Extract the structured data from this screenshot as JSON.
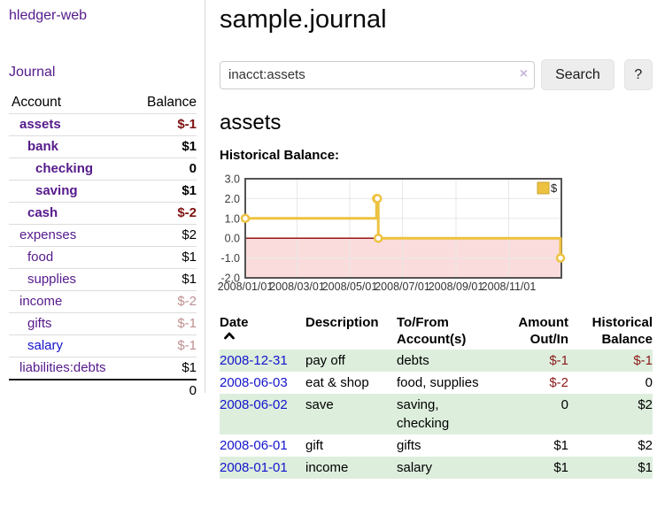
{
  "colors": {
    "link_purple": "#551a8b",
    "link_blue": "#1414cc",
    "negative_strong": "#7f1111",
    "negative_muted": "#bf8f8f",
    "register_negative": "#8b1a1a",
    "row_green": "#ddeedd",
    "chart_gold": "#edc240"
  },
  "sidebar": {
    "app_title": "hledger-web",
    "nav_journal": "Journal",
    "accounts": {
      "header_account": "Account",
      "header_balance": "Balance",
      "rows": [
        {
          "name": "assets",
          "depth": 1,
          "bold": true,
          "balance": "$-1",
          "balance_color": "neg-strong",
          "link_color": "purple"
        },
        {
          "name": "bank",
          "depth": 2,
          "bold": true,
          "balance": "$1",
          "balance_color": "normal",
          "link_color": "purple"
        },
        {
          "name": "checking",
          "depth": 3,
          "bold": true,
          "balance": "0",
          "balance_color": "normal",
          "link_color": "purple"
        },
        {
          "name": "saving",
          "depth": 3,
          "bold": true,
          "balance": "$1",
          "balance_color": "normal",
          "link_color": "purple"
        },
        {
          "name": "cash",
          "depth": 2,
          "bold": true,
          "balance": "$-2",
          "balance_color": "neg-strong",
          "link_color": "purple"
        },
        {
          "name": "expenses",
          "depth": 1,
          "bold": false,
          "balance": "$2",
          "balance_color": "normal",
          "link_color": "purple"
        },
        {
          "name": "food",
          "depth": 2,
          "bold": false,
          "balance": "$1",
          "balance_color": "normal",
          "link_color": "purple"
        },
        {
          "name": "supplies",
          "depth": 2,
          "bold": false,
          "balance": "$1",
          "balance_color": "normal",
          "link_color": "purple"
        },
        {
          "name": "income",
          "depth": 1,
          "bold": false,
          "balance": "$-2",
          "balance_color": "neg-muted",
          "link_color": "purple"
        },
        {
          "name": "gifts",
          "depth": 2,
          "bold": false,
          "balance": "$-1",
          "balance_color": "neg-muted",
          "link_color": "purple"
        },
        {
          "name": "salary",
          "depth": 2,
          "bold": false,
          "balance": "$-1",
          "balance_color": "neg-muted",
          "link_color": "blue"
        },
        {
          "name": "liabilities:debts",
          "depth": 1,
          "bold": false,
          "balance": "$1",
          "balance_color": "normal",
          "link_color": "purple"
        }
      ],
      "total": "0"
    }
  },
  "header": {
    "title": "sample.journal"
  },
  "search": {
    "query": "inacct:assets",
    "clear_icon": "×",
    "search_button": "Search",
    "help_button": "?"
  },
  "account_view": {
    "heading": "assets",
    "chart_title": "Historical Balance:"
  },
  "chart_data": {
    "type": "line",
    "title": "Historical Balance:",
    "series": [
      {
        "name": "$",
        "color": "#edc240",
        "steps": true,
        "points": [
          [
            "2008-01-01",
            1
          ],
          [
            "2008-06-01",
            2
          ],
          [
            "2008-06-02",
            2
          ],
          [
            "2008-06-03",
            0
          ],
          [
            "2008-12-31",
            -1
          ]
        ]
      }
    ],
    "x_range": [
      "2008-01-01",
      "2009-01-01"
    ],
    "ylim": [
      -2,
      3
    ],
    "y_ticks": [
      3,
      2,
      1,
      0,
      -1,
      -2
    ],
    "y_tick_labels": [
      "3.0",
      "2.0",
      "1.0",
      "0.0",
      "-1.0",
      "-2.0"
    ],
    "x_ticks": [
      "2008-01-01",
      "2008-03-01",
      "2008-05-01",
      "2008-07-01",
      "2008-09-01",
      "2008-11-01"
    ],
    "x_tick_labels": [
      "2008/01/01",
      "2008/03/01",
      "2008/05/01",
      "2008/07/01",
      "2008/09/01",
      "2008/11/01"
    ],
    "x_gridlines_extra": [
      "2009-01-01"
    ],
    "grid": true,
    "legend": {
      "label": "$",
      "position": "top-right"
    },
    "colors": {
      "negative_zone": "#fbdcdc",
      "zero_line": "#8b0000",
      "grid": "#e7e7e7",
      "border": "#545454",
      "marker_fill": "#ffffff"
    }
  },
  "register": {
    "columns": [
      {
        "key": "date",
        "label": "Date",
        "align": "left",
        "sort": "asc"
      },
      {
        "key": "description",
        "label": "Description",
        "align": "left"
      },
      {
        "key": "accounts",
        "label": "To/From Account(s)",
        "align": "left"
      },
      {
        "key": "amount",
        "label": "Amount Out/In",
        "align": "right"
      },
      {
        "key": "balance",
        "label": "Historical Balance",
        "align": "right"
      }
    ],
    "rows": [
      {
        "date": "2008-12-31",
        "description": "pay off",
        "accounts": "debts",
        "amount": "$-1",
        "balance": "$-1"
      },
      {
        "date": "2008-06-03",
        "description": "eat & shop",
        "accounts": "food, supplies",
        "amount": "$-2",
        "balance": "0"
      },
      {
        "date": "2008-06-02",
        "description": "save",
        "accounts": "saving, checking",
        "amount": "0",
        "balance": "$2"
      },
      {
        "date": "2008-06-01",
        "description": "gift",
        "accounts": "gifts",
        "amount": "$1",
        "balance": "$2"
      },
      {
        "date": "2008-01-01",
        "description": "income",
        "accounts": "salary",
        "amount": "$1",
        "balance": "$1"
      }
    ]
  }
}
